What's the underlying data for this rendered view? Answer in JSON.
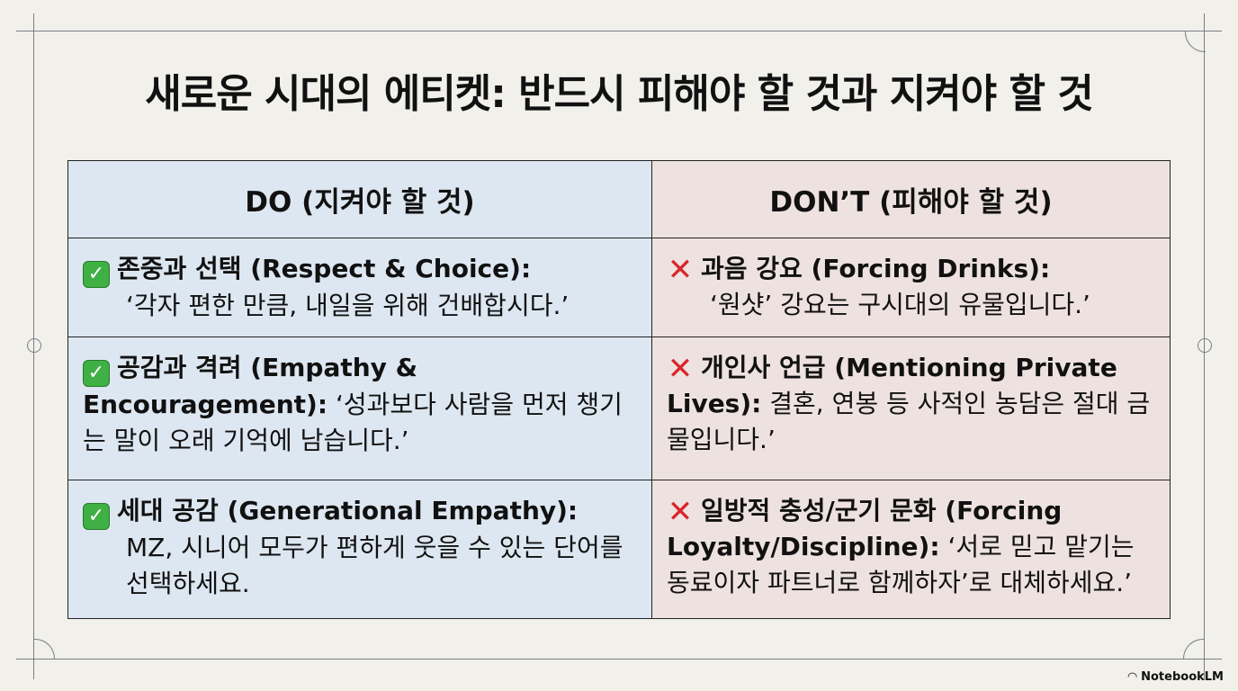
{
  "title": "새로운 시대의 에티켓: 반드시 피해야 할 것과 지켜야 할 것",
  "do_header": "DO (지켜야 할 것)",
  "dont_header": "DON’T (피해야 할 것)",
  "rows": [
    {
      "do_title": "존중과 선택 (Respect & Choice):",
      "do_text": "‘각자 편한 만큼, 내일을 위해 건배합시다.’",
      "dont_title": "과음 강요 (Forcing Drinks):",
      "dont_text": "‘원샷’ 강요는 구시대의 유물입니다.’"
    },
    {
      "do_title": "공감과 격려 (Empathy & Encouragement):",
      "do_text": "‘성과보다 사람을 먼저 챙기는 말이 오래 기억에 남습니다.’",
      "dont_title": "개인사 언급 (Mentioning Private Lives):",
      "dont_text": "결혼, 연봉 등 사적인 농담은 절대 금물입니다.’"
    },
    {
      "do_title": "세대 공감 (Generational Empathy):",
      "do_text": "MZ, 시니어 모두가 편하게 웃을 수 있는 단어를 선택하세요.",
      "dont_title": "일방적 충성/군기 문화 (Forcing Loyalty/Discipline):",
      "dont_text": "‘서로 믿고 맡기는 동료이자 파트너로 함께하자’로 대체하세요.’"
    }
  ],
  "icons": {
    "do": "check-mark-button-icon",
    "dont": "cross-mark-icon"
  },
  "colors": {
    "do_bg": "#dde7f1",
    "dont_bg": "#eee2e0",
    "check": "#3fb043",
    "cross": "#d7262c"
  },
  "watermark": "NotebookLM"
}
